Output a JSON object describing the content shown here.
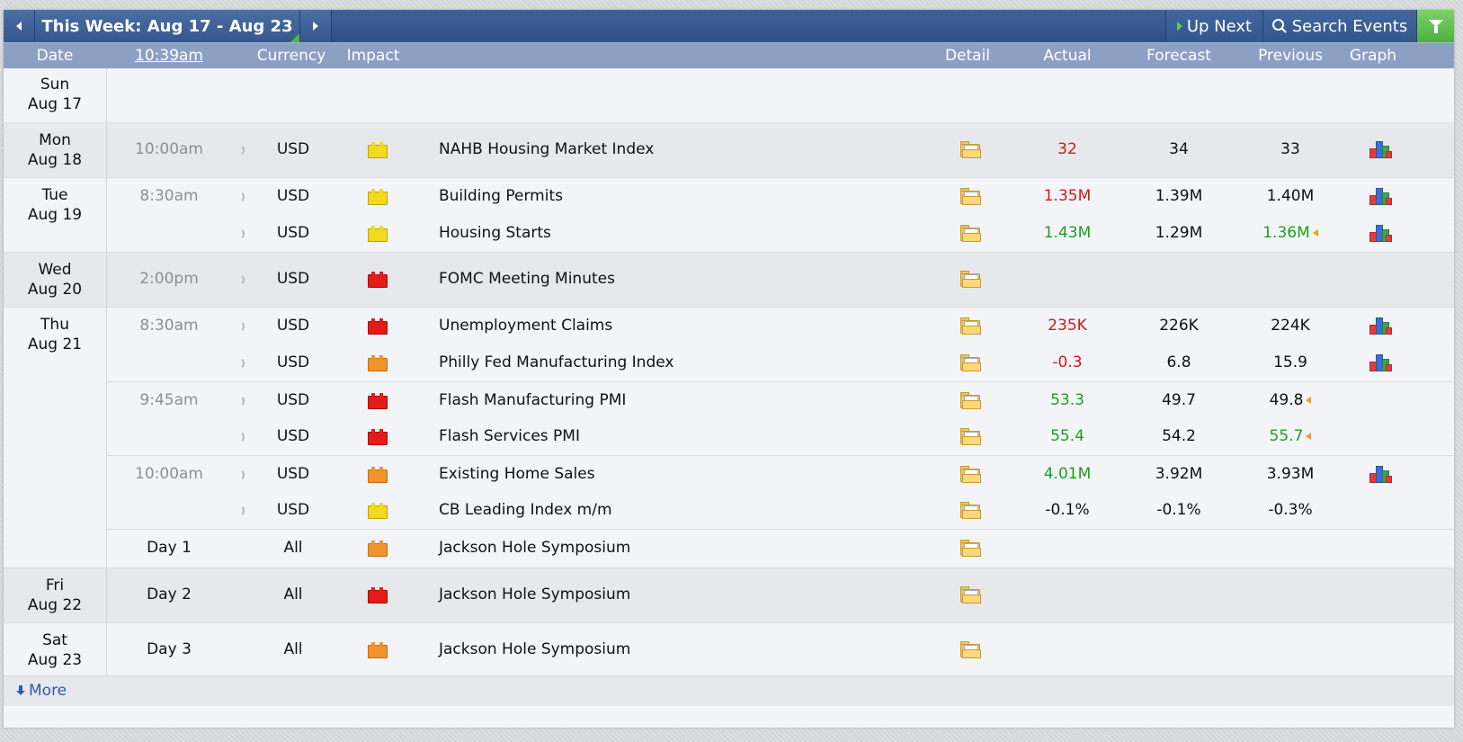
{
  "nav": {
    "week_title": "This Week: Aug 17 - Aug 23",
    "up_next_label": "Up Next",
    "search_label": "Search Events",
    "prev_icon": "chevron-left-icon",
    "next_icon": "chevron-right-icon",
    "filter_icon": "filter-icon",
    "accent_green": "#4fb03d",
    "bar_color": "#35578e"
  },
  "headers": {
    "date": "Date",
    "time": "10:39am",
    "currency": "Currency",
    "impact": "Impact",
    "detail": "Detail",
    "actual": "Actual",
    "forecast": "Forecast",
    "previous": "Previous",
    "graph": "Graph"
  },
  "days": [
    {
      "dow": "Sun",
      "date": "Aug 17",
      "events": []
    },
    {
      "dow": "Mon",
      "date": "Aug 18",
      "events": [
        {
          "time": "10:00am",
          "currency": "USD",
          "impact": "yellow",
          "name": "NAHB Housing Market Index",
          "actual": "32",
          "actual_color": "red",
          "forecast": "34",
          "previous": "33",
          "previous_color": "black",
          "previous_revised": false,
          "graph": true
        }
      ]
    },
    {
      "dow": "Tue",
      "date": "Aug 19",
      "events": [
        {
          "time": "8:30am",
          "currency": "USD",
          "impact": "yellow",
          "name": "Building Permits",
          "actual": "1.35M",
          "actual_color": "red",
          "forecast": "1.39M",
          "previous": "1.40M",
          "previous_color": "black",
          "previous_revised": false,
          "graph": true
        },
        {
          "time": "",
          "currency": "USD",
          "impact": "yellow",
          "name": "Housing Starts",
          "actual": "1.43M",
          "actual_color": "green",
          "forecast": "1.29M",
          "previous": "1.36M",
          "previous_color": "green",
          "previous_revised": true,
          "graph": true
        }
      ]
    },
    {
      "dow": "Wed",
      "date": "Aug 20",
      "events": [
        {
          "time": "2:00pm",
          "currency": "USD",
          "impact": "red",
          "name": "FOMC Meeting Minutes",
          "actual": "",
          "actual_color": "black",
          "forecast": "",
          "previous": "",
          "previous_color": "black",
          "previous_revised": false,
          "graph": false
        }
      ]
    },
    {
      "dow": "Thu",
      "date": "Aug 21",
      "events": [
        {
          "time": "8:30am",
          "currency": "USD",
          "impact": "red",
          "name": "Unemployment Claims",
          "actual": "235K",
          "actual_color": "red",
          "forecast": "226K",
          "previous": "224K",
          "previous_color": "black",
          "previous_revised": false,
          "graph": true
        },
        {
          "time": "",
          "currency": "USD",
          "impact": "orange",
          "name": "Philly Fed Manufacturing Index",
          "actual": "-0.3",
          "actual_color": "red",
          "forecast": "6.8",
          "previous": "15.9",
          "previous_color": "black",
          "previous_revised": false,
          "graph": true
        },
        {
          "time": "9:45am",
          "currency": "USD",
          "impact": "red",
          "name": "Flash Manufacturing PMI",
          "actual": "53.3",
          "actual_color": "green",
          "forecast": "49.7",
          "previous": "49.8",
          "previous_color": "black",
          "previous_revised": true,
          "graph": false
        },
        {
          "time": "",
          "currency": "USD",
          "impact": "red",
          "name": "Flash Services PMI",
          "actual": "55.4",
          "actual_color": "green",
          "forecast": "54.2",
          "previous": "55.7",
          "previous_color": "green",
          "previous_revised": true,
          "graph": false
        },
        {
          "time": "10:00am",
          "currency": "USD",
          "impact": "orange",
          "name": "Existing Home Sales",
          "actual": "4.01M",
          "actual_color": "green",
          "forecast": "3.92M",
          "previous": "3.93M",
          "previous_color": "black",
          "previous_revised": false,
          "graph": true
        },
        {
          "time": "",
          "currency": "USD",
          "impact": "yellow",
          "name": "CB Leading Index m/m",
          "actual": "-0.1%",
          "actual_color": "black",
          "forecast": "-0.1%",
          "previous": "-0.3%",
          "previous_color": "black",
          "previous_revised": false,
          "graph": false
        },
        {
          "time": "Day 1",
          "currency": "All",
          "impact": "orange",
          "name": "Jackson Hole Symposium",
          "actual": "",
          "actual_color": "black",
          "forecast": "",
          "previous": "",
          "previous_color": "black",
          "previous_revised": false,
          "graph": false
        }
      ]
    },
    {
      "dow": "Fri",
      "date": "Aug 22",
      "events": [
        {
          "time": "Day 2",
          "currency": "All",
          "impact": "red",
          "name": "Jackson Hole Symposium",
          "actual": "",
          "actual_color": "black",
          "forecast": "",
          "previous": "",
          "previous_color": "black",
          "previous_revised": false,
          "graph": false
        }
      ]
    },
    {
      "dow": "Sat",
      "date": "Aug 23",
      "events": [
        {
          "time": "Day 3",
          "currency": "All",
          "impact": "orange",
          "name": "Jackson Hole Symposium",
          "actual": "",
          "actual_color": "black",
          "forecast": "",
          "previous": "",
          "previous_color": "black",
          "previous_revised": false,
          "graph": false
        }
      ]
    }
  ],
  "footer": {
    "more_label": "More"
  }
}
